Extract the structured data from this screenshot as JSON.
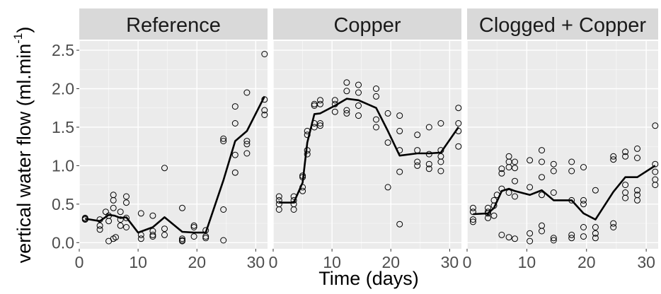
{
  "chart_data": {
    "type": "scatter",
    "xlabel": "Time (days)",
    "ylabel": "vertical water flow (ml.min-1)",
    "ylabel_parts": {
      "main": "vertical water flow (ml.min",
      "superscript": "-1",
      "close": ")"
    },
    "xlim": [
      0,
      32
    ],
    "ylim": [
      -0.08,
      2.62
    ],
    "x_ticks": [
      0,
      10,
      20,
      30
    ],
    "y_ticks": [
      0.0,
      0.5,
      1.0,
      1.5,
      2.0,
      2.5
    ],
    "y_tick_labels": [
      "0.0",
      "0.5",
      "1.0",
      "1.5",
      "2.0",
      "2.5"
    ],
    "grid": true,
    "colors": {
      "panel_bg": "#ebebeb",
      "strip_bg": "#d9d9d9",
      "grid": "#ffffff",
      "ink": "#000000",
      "tick_text": "#4d4d4d"
    },
    "facets": [
      {
        "title": "Reference",
        "points": [
          [
            1,
            0.3
          ],
          [
            1,
            0.32
          ],
          [
            1,
            0.31
          ],
          [
            3.5,
            0.3
          ],
          [
            3.5,
            0.22
          ],
          [
            3.5,
            0.17
          ],
          [
            4.5,
            0.4
          ],
          [
            5,
            0.35
          ],
          [
            5,
            0.28
          ],
          [
            5,
            0.02
          ],
          [
            5.8,
            0.62
          ],
          [
            5.8,
            0.55
          ],
          [
            5.8,
            0.45
          ],
          [
            5.8,
            0.05
          ],
          [
            6.2,
            0.07
          ],
          [
            7,
            0.4
          ],
          [
            7,
            0.3
          ],
          [
            7,
            0.22
          ],
          [
            8,
            0.6
          ],
          [
            8,
            0.52
          ],
          [
            8,
            0.32
          ],
          [
            8,
            0.2
          ],
          [
            10.5,
            0.38
          ],
          [
            10.5,
            0.1
          ],
          [
            10.5,
            0.05
          ],
          [
            12.5,
            0.35
          ],
          [
            12.5,
            0.15
          ],
          [
            12.5,
            0.08
          ],
          [
            12.5,
            0.1
          ],
          [
            14.5,
            0.97
          ],
          [
            14.5,
            0.18
          ],
          [
            14.5,
            0.1
          ],
          [
            17.5,
            0.45
          ],
          [
            17.5,
            0.05
          ],
          [
            17.5,
            0.02
          ],
          [
            17.5,
            0.03
          ],
          [
            19.5,
            0.22
          ],
          [
            19.5,
            0.2
          ],
          [
            19.5,
            0.08
          ],
          [
            21.5,
            0.16
          ],
          [
            21.5,
            0.08
          ],
          [
            21.5,
            0.06
          ],
          [
            24.5,
            1.35
          ],
          [
            24.5,
            1.32
          ],
          [
            24.5,
            0.43
          ],
          [
            24.5,
            0.03
          ],
          [
            26.5,
            1.77
          ],
          [
            26.5,
            1.55
          ],
          [
            26.5,
            1.14
          ],
          [
            26.5,
            0.91
          ],
          [
            28.5,
            1.95
          ],
          [
            28.5,
            1.32
          ],
          [
            28.5,
            1.28
          ],
          [
            28.5,
            1.16
          ],
          [
            31.5,
            2.45
          ],
          [
            31.5,
            1.86
          ],
          [
            31.5,
            1.72
          ],
          [
            31.5,
            1.66
          ]
        ],
        "trend": [
          [
            1,
            0.31
          ],
          [
            3.5,
            0.28
          ],
          [
            5,
            0.36
          ],
          [
            6,
            0.35
          ],
          [
            7,
            0.32
          ],
          [
            8,
            0.33
          ],
          [
            10,
            0.13
          ],
          [
            12.5,
            0.2
          ],
          [
            14.5,
            0.33
          ],
          [
            17.5,
            0.14
          ],
          [
            19.5,
            0.13
          ],
          [
            21.5,
            0.13
          ],
          [
            24.5,
            0.81
          ],
          [
            26.5,
            1.32
          ],
          [
            28.5,
            1.45
          ],
          [
            31.5,
            1.9
          ]
        ]
      },
      {
        "title": "Copper",
        "points": [
          [
            1,
            0.6
          ],
          [
            1,
            0.55
          ],
          [
            1,
            0.5
          ],
          [
            1,
            0.43
          ],
          [
            3.5,
            0.6
          ],
          [
            3.5,
            0.55
          ],
          [
            3.5,
            0.5
          ],
          [
            3.5,
            0.43
          ],
          [
            5,
            0.87
          ],
          [
            5,
            0.85
          ],
          [
            5,
            0.72
          ],
          [
            5,
            0.67
          ],
          [
            5.8,
            1.45
          ],
          [
            5.8,
            1.4
          ],
          [
            5.8,
            1.2
          ],
          [
            5.8,
            1.15
          ],
          [
            7,
            1.8
          ],
          [
            7,
            1.78
          ],
          [
            7,
            1.55
          ],
          [
            7,
            1.5
          ],
          [
            8,
            1.85
          ],
          [
            8,
            1.8
          ],
          [
            8,
            1.55
          ],
          [
            8,
            1.52
          ],
          [
            10.5,
            1.85
          ],
          [
            10.5,
            1.8
          ],
          [
            10.5,
            1.7
          ],
          [
            12.5,
            2.08
          ],
          [
            12.5,
            1.97
          ],
          [
            12.5,
            1.72
          ],
          [
            12.5,
            1.68
          ],
          [
            14.5,
            2.05
          ],
          [
            14.5,
            1.95
          ],
          [
            14.5,
            1.78
          ],
          [
            14.5,
            1.65
          ],
          [
            17.5,
            2.0
          ],
          [
            17.5,
            1.9
          ],
          [
            17.5,
            1.6
          ],
          [
            17.5,
            1.5
          ],
          [
            19.5,
            1.68
          ],
          [
            19.5,
            1.3
          ],
          [
            19.5,
            0.72
          ],
          [
            21.5,
            1.65
          ],
          [
            21.5,
            1.45
          ],
          [
            21.5,
            1.2
          ],
          [
            21.5,
            0.92
          ],
          [
            21.5,
            0.24
          ],
          [
            24.5,
            1.4
          ],
          [
            24.5,
            1.2
          ],
          [
            24.5,
            1.05
          ],
          [
            24.5,
            1.0
          ],
          [
            26.5,
            1.5
          ],
          [
            26.5,
            1.15
          ],
          [
            26.5,
            1.02
          ],
          [
            26.5,
            0.96
          ],
          [
            28.5,
            1.55
          ],
          [
            28.5,
            1.2
          ],
          [
            28.5,
            1.12
          ],
          [
            28.5,
            1.05
          ],
          [
            28.5,
            0.93
          ],
          [
            31.5,
            1.75
          ],
          [
            31.5,
            1.55
          ],
          [
            31.5,
            1.45
          ],
          [
            31.5,
            1.25
          ]
        ],
        "trend": [
          [
            1,
            0.52
          ],
          [
            3.5,
            0.52
          ],
          [
            5,
            0.78
          ],
          [
            5.8,
            1.3
          ],
          [
            7,
            1.67
          ],
          [
            8,
            1.68
          ],
          [
            10.5,
            1.78
          ],
          [
            12.5,
            1.87
          ],
          [
            14.5,
            1.85
          ],
          [
            17.5,
            1.75
          ],
          [
            19.5,
            1.45
          ],
          [
            21.5,
            1.13
          ],
          [
            24.5,
            1.16
          ],
          [
            26.5,
            1.16
          ],
          [
            28.5,
            1.17
          ],
          [
            31.5,
            1.5
          ]
        ]
      },
      {
        "title": "Clogged + Copper",
        "points": [
          [
            1,
            0.45
          ],
          [
            1,
            0.4
          ],
          [
            1,
            0.3
          ],
          [
            1,
            0.27
          ],
          [
            3.5,
            0.45
          ],
          [
            3.5,
            0.4
          ],
          [
            3.5,
            0.38
          ],
          [
            3.5,
            0.32
          ],
          [
            4.5,
            0.55
          ],
          [
            4.5,
            0.48
          ],
          [
            4.5,
            0.35
          ],
          [
            5,
            0.62
          ],
          [
            5.8,
            0.96
          ],
          [
            5.8,
            0.9
          ],
          [
            5.8,
            0.7
          ],
          [
            5.8,
            0.1
          ],
          [
            7,
            1.12
          ],
          [
            7,
            1.05
          ],
          [
            7,
            0.98
          ],
          [
            7,
            0.65
          ],
          [
            7,
            0.07
          ],
          [
            8,
            1.05
          ],
          [
            8,
            0.97
          ],
          [
            8,
            0.8
          ],
          [
            8,
            0.6
          ],
          [
            8,
            0.05
          ],
          [
            10.5,
            1.07
          ],
          [
            10.5,
            0.72
          ],
          [
            10.5,
            0.12
          ],
          [
            10.5,
            0.02
          ],
          [
            12.5,
            1.2
          ],
          [
            12.5,
            1.05
          ],
          [
            12.5,
            0.85
          ],
          [
            12.5,
            0.62
          ],
          [
            12.5,
            0.22
          ],
          [
            12.5,
            0.15
          ],
          [
            14.5,
            1.02
          ],
          [
            14.5,
            0.93
          ],
          [
            14.5,
            0.65
          ],
          [
            14.5,
            0.06
          ],
          [
            14.5,
            0.03
          ],
          [
            17.5,
            1.05
          ],
          [
            17.5,
            0.93
          ],
          [
            17.5,
            0.55
          ],
          [
            17.5,
            0.1
          ],
          [
            17.5,
            0.06
          ],
          [
            19.5,
            0.98
          ],
          [
            19.5,
            0.55
          ],
          [
            19.5,
            0.5
          ],
          [
            19.5,
            0.2
          ],
          [
            19.5,
            0.08
          ],
          [
            21.5,
            0.68
          ],
          [
            21.5,
            0.2
          ],
          [
            21.5,
            0.12
          ],
          [
            21.5,
            0.06
          ],
          [
            24.5,
            1.12
          ],
          [
            24.5,
            1.08
          ],
          [
            24.5,
            0.25
          ],
          [
            24.5,
            0.2
          ],
          [
            26.5,
            1.18
          ],
          [
            26.5,
            1.12
          ],
          [
            26.5,
            0.75
          ],
          [
            26.5,
            0.65
          ],
          [
            26.5,
            0.58
          ],
          [
            28.5,
            1.22
          ],
          [
            28.5,
            1.1
          ],
          [
            28.5,
            0.68
          ],
          [
            28.5,
            0.62
          ],
          [
            28.5,
            0.55
          ],
          [
            31.5,
            1.52
          ],
          [
            31.5,
            1.02
          ],
          [
            31.5,
            0.92
          ],
          [
            31.5,
            0.82
          ],
          [
            31.5,
            0.75
          ]
        ],
        "trend": [
          [
            1,
            0.37
          ],
          [
            3.5,
            0.38
          ],
          [
            4.5,
            0.45
          ],
          [
            5.8,
            0.67
          ],
          [
            7,
            0.7
          ],
          [
            8,
            0.67
          ],
          [
            10.5,
            0.62
          ],
          [
            12.5,
            0.68
          ],
          [
            14.5,
            0.55
          ],
          [
            17.5,
            0.55
          ],
          [
            19.5,
            0.38
          ],
          [
            21.5,
            0.3
          ],
          [
            24.5,
            0.66
          ],
          [
            26.5,
            0.85
          ],
          [
            28.5,
            0.85
          ],
          [
            31.5,
            1.0
          ]
        ]
      }
    ]
  }
}
